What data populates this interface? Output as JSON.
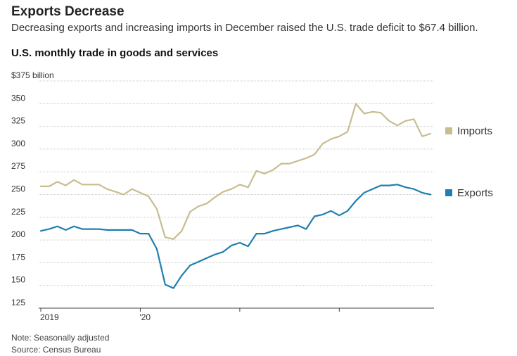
{
  "headline": "Exports Decrease",
  "subhead": "Decreasing exports and increasing imports in December raised the U.S. trade deficit to $67.4 billion.",
  "chart_title": "U.S. monthly trade in goods and services",
  "note": "Note: Seasonally adjusted",
  "source": "Source: Census Bureau",
  "colors": {
    "imports": "#c8bd8f",
    "exports": "#1f7fb0",
    "grid": "#cccccc",
    "axis": "#444444"
  },
  "chart_data": {
    "type": "line",
    "title": "U.S. monthly trade in goods and services",
    "xlabel": "",
    "ylabel": "",
    "ylim": [
      125,
      375
    ],
    "y_ticks": [
      {
        "value": 375,
        "label": "$375 billion"
      },
      {
        "value": 350,
        "label": "350"
      },
      {
        "value": 325,
        "label": "325"
      },
      {
        "value": 300,
        "label": "300"
      },
      {
        "value": 275,
        "label": "275"
      },
      {
        "value": 250,
        "label": "250"
      },
      {
        "value": 225,
        "label": "225"
      },
      {
        "value": 200,
        "label": "200"
      },
      {
        "value": 175,
        "label": "175"
      },
      {
        "value": 150,
        "label": "150"
      },
      {
        "value": 125,
        "label": "125"
      }
    ],
    "x_ticks": [
      {
        "index": 0,
        "label": "2019"
      },
      {
        "index": 12,
        "label": "'20"
      },
      {
        "index": 24,
        "label": ""
      },
      {
        "index": 36,
        "label": ""
      }
    ],
    "x": [
      "Jan 2019",
      "Feb 2019",
      "Mar 2019",
      "Apr 2019",
      "May 2019",
      "Jun 2019",
      "Jul 2019",
      "Aug 2019",
      "Sep 2019",
      "Oct 2019",
      "Nov 2019",
      "Dec 2019",
      "Jan 2020",
      "Feb 2020",
      "Mar 2020",
      "Apr 2020",
      "May 2020",
      "Jun 2020",
      "Jul 2020",
      "Aug 2020",
      "Sep 2020",
      "Oct 2020",
      "Nov 2020",
      "Dec 2020",
      "Jan 2021",
      "Feb 2021",
      "Mar 2021",
      "Apr 2021",
      "May 2021",
      "Jun 2021",
      "Jul 2021",
      "Aug 2021",
      "Sep 2021",
      "Oct 2021",
      "Nov 2021",
      "Dec 2021",
      "Jan 2022",
      "Feb 2022",
      "Mar 2022",
      "Apr 2022",
      "May 2022",
      "Jun 2022",
      "Jul 2022",
      "Aug 2022",
      "Sep 2022",
      "Oct 2022",
      "Nov 2022",
      "Dec 2022"
    ],
    "series": [
      {
        "name": "Imports",
        "values": [
          259,
          259,
          264,
          260,
          266,
          261,
          261,
          261,
          256,
          253,
          250,
          256,
          252,
          248,
          234,
          203,
          201,
          210,
          231,
          237,
          240,
          247,
          253,
          256,
          261,
          258,
          276,
          273,
          277,
          284,
          284,
          287,
          290,
          294,
          306,
          311,
          314,
          319,
          350,
          339,
          341,
          340,
          331,
          326,
          331,
          333,
          314,
          317
        ]
      },
      {
        "name": "Exports",
        "values": [
          210,
          212,
          215,
          211,
          215,
          212,
          212,
          212,
          211,
          211,
          211,
          211,
          207,
          207,
          190,
          151,
          147,
          161,
          172,
          176,
          180,
          184,
          187,
          194,
          197,
          193,
          207,
          207,
          210,
          212,
          214,
          216,
          212,
          226,
          228,
          232,
          227,
          232,
          243,
          252,
          256,
          260,
          260,
          261,
          258,
          256,
          252,
          250
        ]
      }
    ]
  }
}
